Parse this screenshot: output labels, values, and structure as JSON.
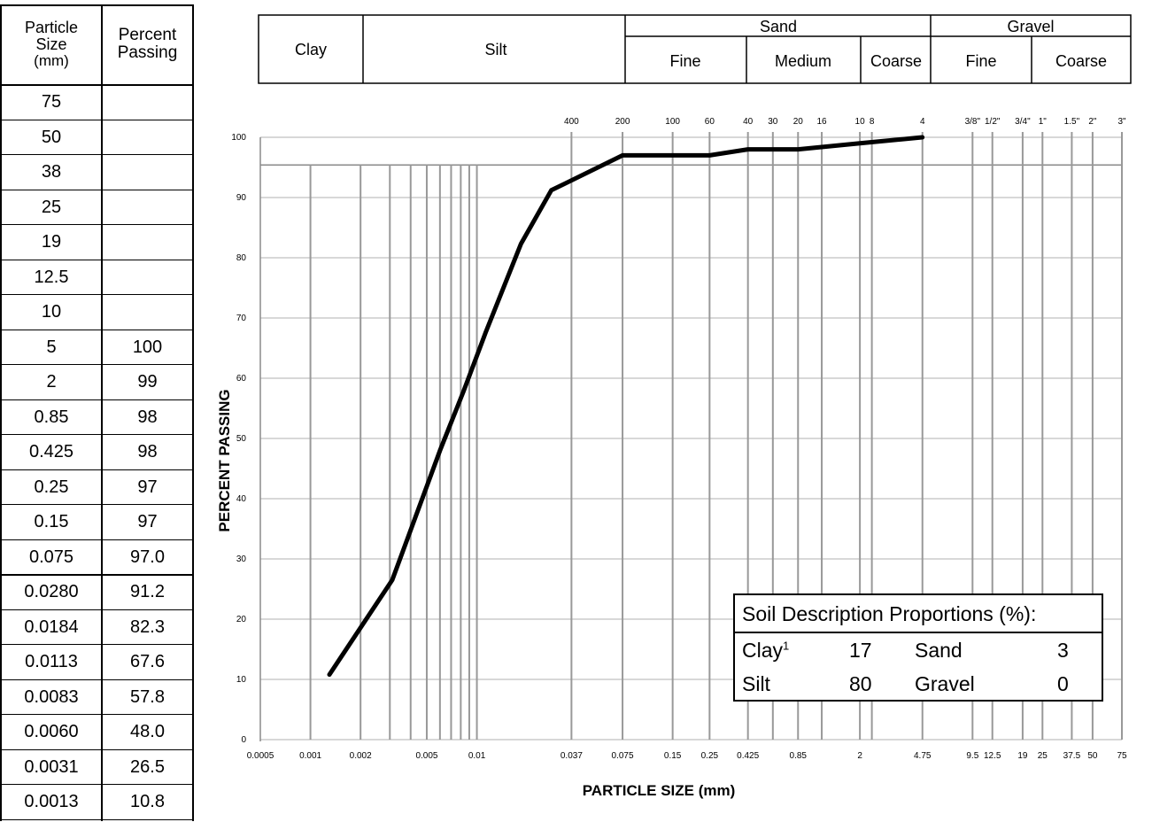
{
  "table": {
    "col1_header": [
      "Particle",
      "Size",
      "(mm)"
    ],
    "col2_header": [
      "Percent",
      "Passing"
    ],
    "rows": [
      {
        "size": "75",
        "passing": ""
      },
      {
        "size": "50",
        "passing": ""
      },
      {
        "size": "38",
        "passing": ""
      },
      {
        "size": "25",
        "passing": ""
      },
      {
        "size": "19",
        "passing": ""
      },
      {
        "size": "12.5",
        "passing": ""
      },
      {
        "size": "10",
        "passing": ""
      },
      {
        "size": "5",
        "passing": "100"
      },
      {
        "size": "2",
        "passing": "99"
      },
      {
        "size": "0.85",
        "passing": "98"
      },
      {
        "size": "0.425",
        "passing": "98"
      },
      {
        "size": "0.25",
        "passing": "97"
      },
      {
        "size": "0.15",
        "passing": "97"
      },
      {
        "size": "0.075",
        "passing": "97.0"
      },
      {
        "size": "0.0280",
        "passing": "91.2"
      },
      {
        "size": "0.0184",
        "passing": "82.3"
      },
      {
        "size": "0.0113",
        "passing": "67.6"
      },
      {
        "size": "0.0083",
        "passing": "57.8"
      },
      {
        "size": "0.0060",
        "passing": "48.0"
      },
      {
        "size": "0.0031",
        "passing": "26.5"
      },
      {
        "size": "0.0013",
        "passing": "10.8"
      }
    ]
  },
  "classification": {
    "clay": "Clay",
    "silt": "Silt",
    "sand": "Sand",
    "gravel": "Gravel",
    "sand_fine": "Fine",
    "sand_medium": "Medium",
    "sand_coarse": "Coarse",
    "gravel_fine": "Fine",
    "gravel_coarse": "Coarse"
  },
  "chart_data": {
    "type": "line",
    "xlabel": "PARTICLE SIZE (mm)",
    "ylabel": "PERCENT PASSING",
    "x_scale": "log",
    "xlim": [
      0.0005,
      75
    ],
    "ylim": [
      0,
      100
    ],
    "y_ticks": [
      0,
      10,
      20,
      30,
      40,
      50,
      60,
      70,
      80,
      90,
      100
    ],
    "x_tick_labels": [
      {
        "value": 0.0005,
        "label": "0.0005"
      },
      {
        "value": 0.001,
        "label": "0.001"
      },
      {
        "value": 0.002,
        "label": "0.002"
      },
      {
        "value": 0.005,
        "label": "0.005"
      },
      {
        "value": 0.01,
        "label": "0.01"
      },
      {
        "value": 0.037,
        "label": "0.037"
      },
      {
        "value": 0.075,
        "label": "0.075"
      },
      {
        "value": 0.15,
        "label": "0.15"
      },
      {
        "value": 0.25,
        "label": "0.25"
      },
      {
        "value": 0.425,
        "label": "0.425"
      },
      {
        "value": 0.85,
        "label": "0.85"
      },
      {
        "value": 2,
        "label": "2"
      },
      {
        "value": 4.75,
        "label": "4.75"
      },
      {
        "value": 9.5,
        "label": "9.5"
      },
      {
        "value": 12.5,
        "label": "12.5"
      },
      {
        "value": 19,
        "label": "19"
      },
      {
        "value": 25,
        "label": "25"
      },
      {
        "value": 37.5,
        "label": "37.5"
      },
      {
        "value": 50,
        "label": "50"
      },
      {
        "value": 75,
        "label": "75"
      }
    ],
    "sieve_labels": [
      {
        "value": 0.037,
        "label": "400"
      },
      {
        "value": 0.075,
        "label": "200"
      },
      {
        "value": 0.15,
        "label": "100"
      },
      {
        "value": 0.25,
        "label": "60"
      },
      {
        "value": 0.425,
        "label": "40"
      },
      {
        "value": 0.6,
        "label": "30"
      },
      {
        "value": 0.85,
        "label": "20"
      },
      {
        "value": 1.18,
        "label": "16"
      },
      {
        "value": 2,
        "label": "10"
      },
      {
        "value": 2.36,
        "label": "8"
      },
      {
        "value": 4.75,
        "label": "4"
      },
      {
        "value": 9.5,
        "label": "3/8\""
      },
      {
        "value": 12.5,
        "label": "1/2\""
      },
      {
        "value": 19,
        "label": "3/4\""
      },
      {
        "value": 25,
        "label": "1\""
      },
      {
        "value": 37.5,
        "label": "1.5\""
      },
      {
        "value": 50,
        "label": "2\""
      },
      {
        "value": 75,
        "label": "3\""
      }
    ],
    "grid_lines_x": [
      0.001,
      0.002,
      0.003,
      0.004,
      0.005,
      0.006,
      0.007,
      0.008,
      0.009,
      0.01,
      0.037,
      0.075,
      0.15,
      0.25,
      0.425,
      0.6,
      0.85,
      1.18,
      2,
      2.36,
      4.75,
      9.5,
      12.5,
      19,
      25,
      37.5,
      50,
      75
    ],
    "series": [
      {
        "x": [
          0.0013,
          0.0031,
          0.006,
          0.0083,
          0.0113,
          0.0184,
          0.028,
          0.075,
          0.15,
          0.25,
          0.425,
          0.85,
          2,
          4.75
        ],
        "y": [
          10.8,
          26.5,
          48.0,
          57.8,
          67.6,
          82.3,
          91.2,
          97.0,
          97,
          97,
          98,
          98,
          99,
          100
        ]
      }
    ],
    "grid": true
  },
  "soil_box": {
    "title": "Soil Description Proportions (%):",
    "clay_label": "Clay",
    "clay_sup": "1",
    "clay_value": "17",
    "sand_label": "Sand",
    "sand_value": "3",
    "silt_label": "Silt",
    "silt_value": "80",
    "gravel_label": "Gravel",
    "gravel_value": "0"
  }
}
